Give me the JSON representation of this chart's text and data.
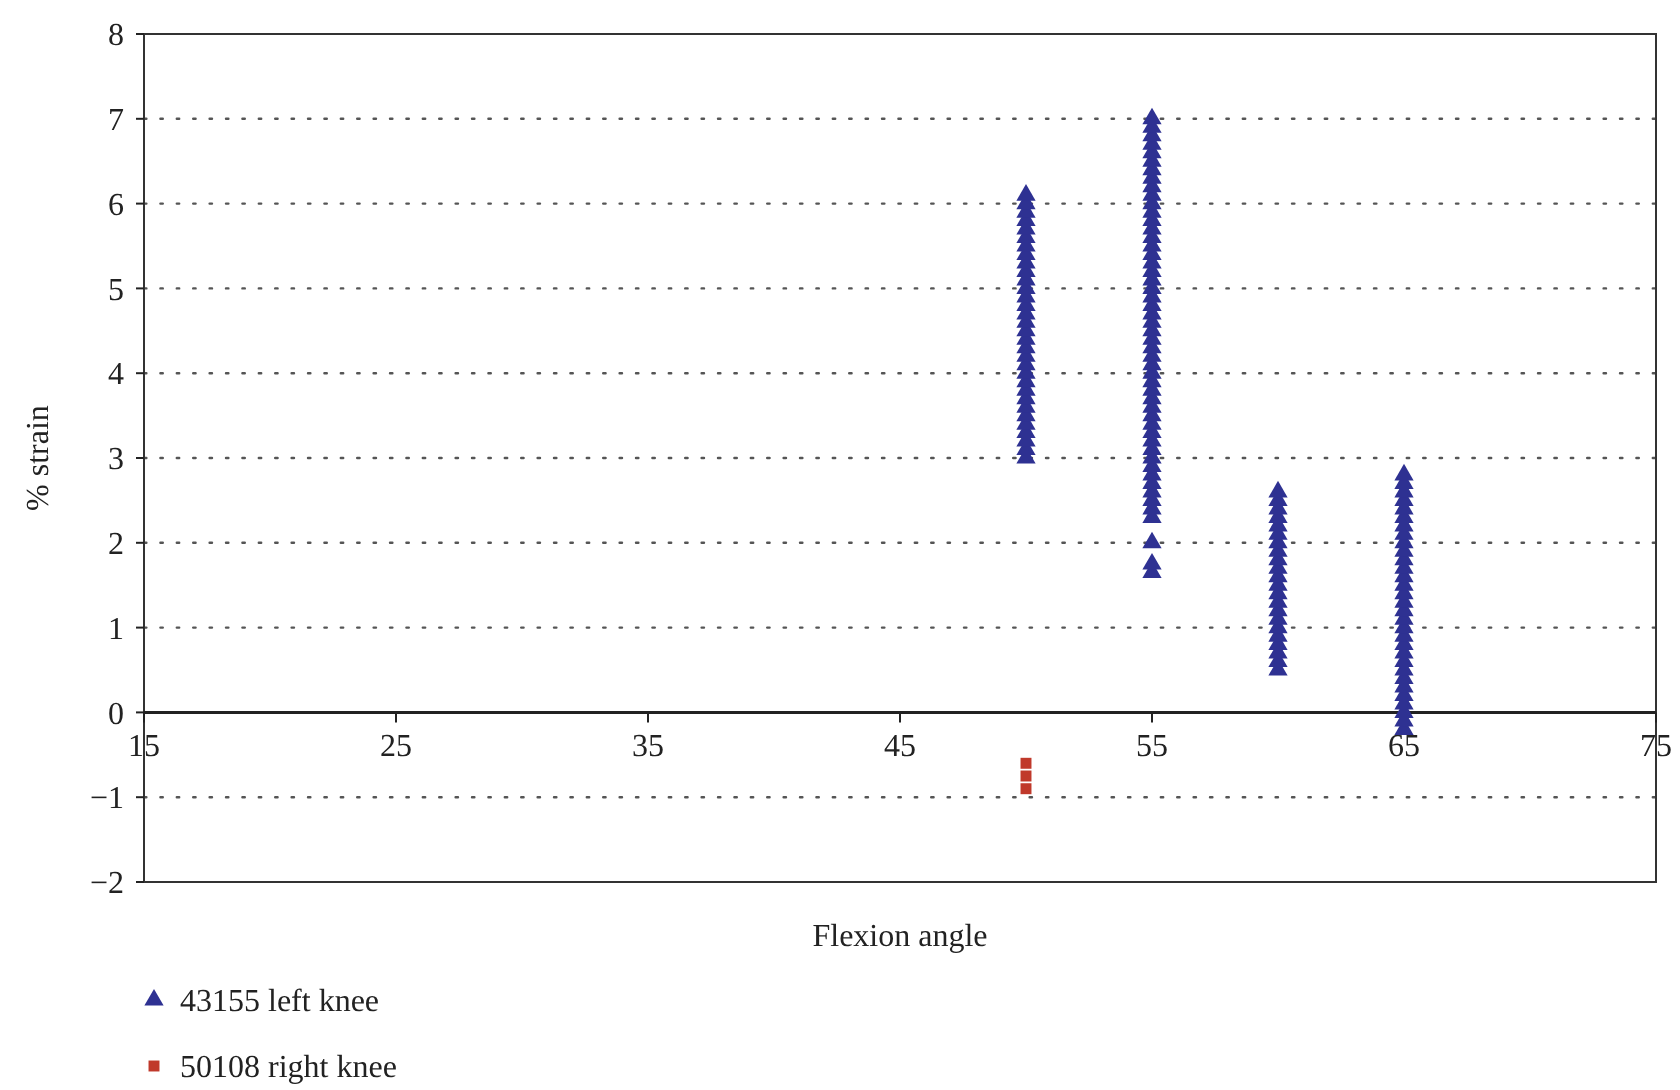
{
  "chart_data": {
    "type": "scatter",
    "xlabel": "Flexion angle",
    "ylabel": "% strain",
    "xlim": [
      15,
      75
    ],
    "ylim": [
      -2,
      8
    ],
    "xticks": [
      15,
      25,
      35,
      45,
      55,
      65,
      75
    ],
    "yticks": [
      {
        "value": -2,
        "label": "−2"
      },
      {
        "value": -1,
        "label": "−1"
      },
      0,
      1,
      2,
      3,
      4,
      5,
      6,
      7,
      8
    ],
    "grid": "y",
    "line_style": "dotted",
    "legend": "bottom",
    "series": [
      {
        "name": "43155 left knee",
        "color": "#2e3192",
        "marker": "triangle",
        "x": [
          50,
          50,
          50,
          50,
          50,
          50,
          50,
          50,
          50,
          50,
          50,
          50,
          50,
          50,
          50,
          50,
          50,
          50,
          50,
          50,
          50,
          50,
          50,
          50,
          50,
          50,
          50,
          50,
          50,
          50,
          50,
          50,
          55,
          55,
          55,
          55,
          55,
          55,
          55,
          55,
          55,
          55,
          55,
          55,
          55,
          55,
          55,
          55,
          55,
          55,
          55,
          55,
          55,
          55,
          55,
          55,
          55,
          55,
          55,
          55,
          55,
          55,
          55,
          55,
          55,
          55,
          55,
          55,
          55,
          55,
          55,
          55,
          55,
          55,
          55,
          55,
          55,
          55,
          55,
          55,
          55,
          55,
          55,
          60,
          60,
          60,
          60,
          60,
          60,
          60,
          60,
          60,
          60,
          60,
          60,
          60,
          60,
          60,
          60,
          60,
          60,
          60,
          60,
          60,
          60,
          65,
          65,
          65,
          65,
          65,
          65,
          65,
          65,
          65,
          65,
          65,
          65,
          65,
          65,
          65,
          65,
          65,
          65,
          65,
          65,
          65,
          65,
          65,
          65,
          65,
          65,
          65,
          65,
          65,
          65,
          65
        ],
        "values": [
          3,
          3.1,
          3.2,
          3.3,
          3.4,
          3.5,
          3.6,
          3.7,
          3.8,
          3.9,
          4,
          4.1,
          4.2,
          4.3,
          4.4,
          4.5,
          4.6,
          4.7,
          4.8,
          4.9,
          5,
          5.1,
          5.2,
          5.3,
          5.4,
          5.5,
          5.6,
          5.7,
          5.8,
          5.9,
          6,
          6.1,
          1.65,
          1.75,
          2,
          2.3,
          2.4,
          2.5,
          2.6,
          2.7,
          2.8,
          2.9,
          3,
          3.1,
          3.2,
          3.3,
          3.4,
          3.5,
          3.6,
          3.7,
          3.8,
          3.9,
          4,
          4.1,
          4.2,
          4.3,
          4.4,
          4.5,
          4.6,
          4.7,
          4.8,
          4.9,
          5,
          5.1,
          5.2,
          5.3,
          5.4,
          5.5,
          5.6,
          5.7,
          5.8,
          5.9,
          6,
          6.1,
          6.2,
          6.3,
          6.4,
          6.5,
          6.6,
          6.7,
          6.8,
          6.9,
          7,
          0.5,
          0.6,
          0.7,
          0.8,
          0.9,
          1,
          1.1,
          1.2,
          1.3,
          1.4,
          1.5,
          1.6,
          1.7,
          1.8,
          1.9,
          2,
          2.1,
          2.2,
          2.3,
          2.4,
          2.5,
          2.6,
          -0.2,
          -0.1,
          0,
          0.1,
          0.2,
          0.3,
          0.4,
          0.5,
          0.6,
          0.7,
          0.8,
          0.9,
          1,
          1.1,
          1.2,
          1.3,
          1.4,
          1.5,
          1.6,
          1.7,
          1.8,
          1.9,
          2,
          2.1,
          2.2,
          2.3,
          2.4,
          2.5,
          2.6,
          2.7,
          2.8
        ]
      },
      {
        "name": "50108 right knee",
        "color": "#c0392b",
        "marker": "square",
        "x": [
          50,
          50,
          50
        ],
        "values": [
          -0.6,
          -0.75,
          -0.9
        ]
      }
    ]
  }
}
